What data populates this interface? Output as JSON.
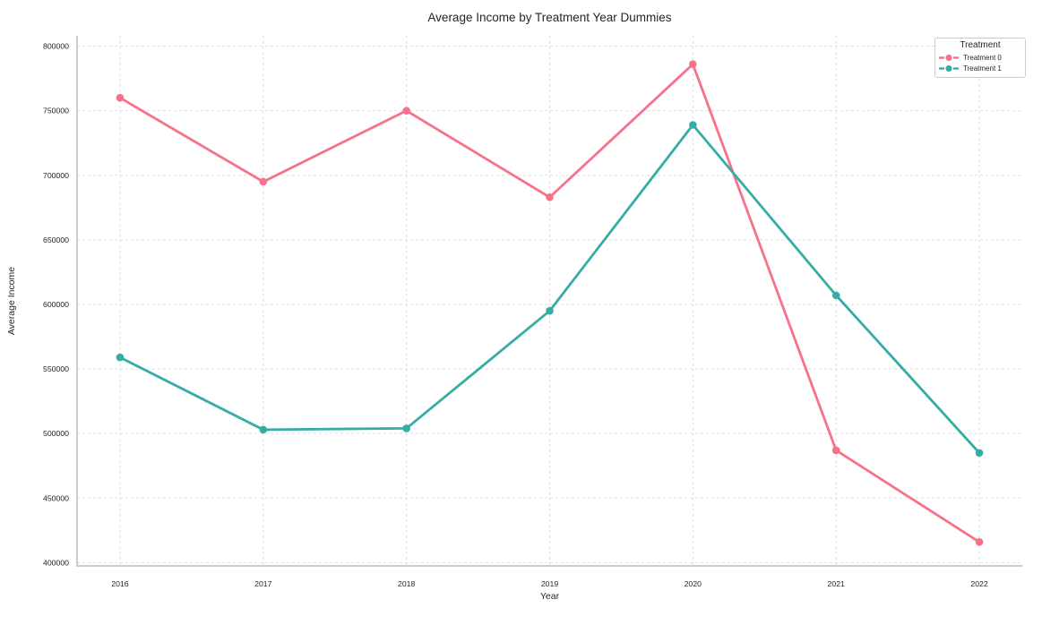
{
  "chart_data": {
    "type": "line",
    "title": "Average Income by Treatment Year Dummies",
    "xlabel": "Year",
    "ylabel": "Average Income",
    "x": [
      2016,
      2017,
      2018,
      2019,
      2020,
      2021,
      2022
    ],
    "series": [
      {
        "name": "Treatment 0",
        "color": "#f77189",
        "values": [
          760000,
          695000,
          750000,
          683000,
          786000,
          487000,
          416000
        ]
      },
      {
        "name": "Treatment 1",
        "color": "#36ada4",
        "values": [
          559000,
          503000,
          504000,
          595000,
          739000,
          607000,
          485000
        ]
      }
    ],
    "legend": {
      "title": "Treatment",
      "position": "upper right"
    },
    "xticks": [
      2016,
      2017,
      2018,
      2019,
      2020,
      2021,
      2022
    ],
    "yticks": [
      400000,
      450000,
      500000,
      550000,
      600000,
      650000,
      700000,
      750000,
      800000
    ],
    "xlim": [
      2015.7,
      2022.3
    ],
    "ylim": [
      397500,
      808000
    ],
    "grid": {
      "visible": true,
      "style": "dashed",
      "color": "#dfdfdf"
    },
    "spine_color": "#cccccc",
    "tick_label_color": "#262626",
    "marker": "circle",
    "line_width": 2.8,
    "marker_radius": 4.3
  }
}
